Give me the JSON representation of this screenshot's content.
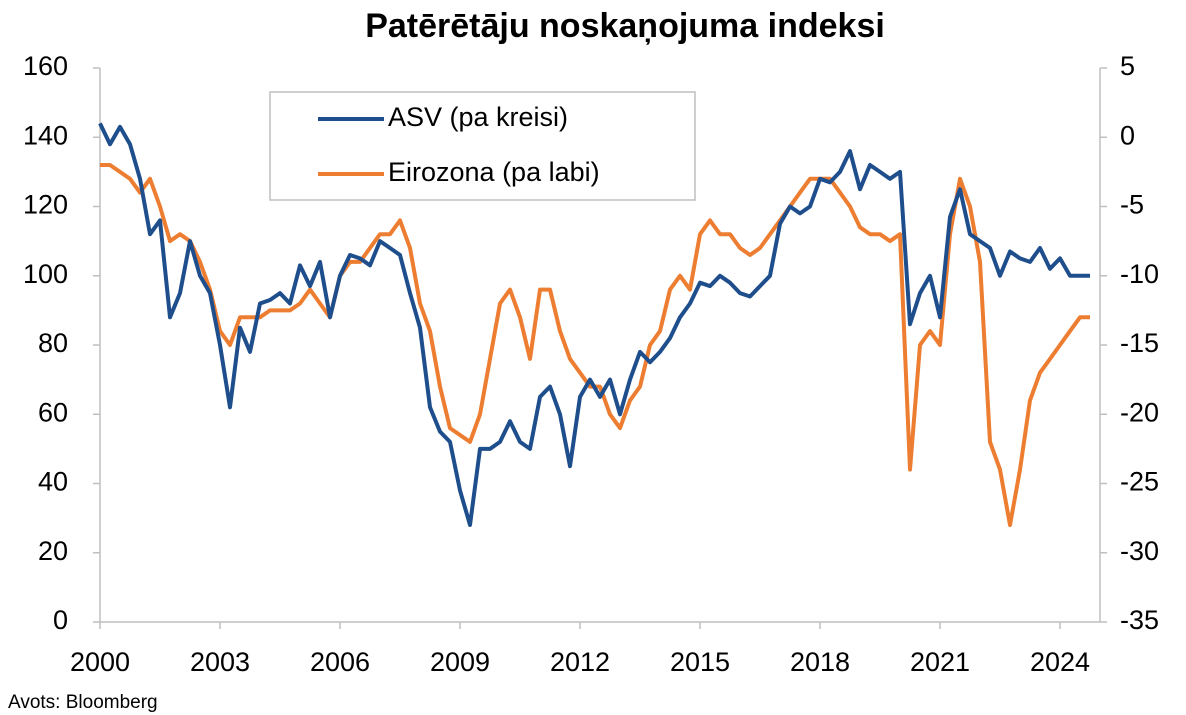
{
  "chart_data": {
    "type": "line",
    "title": "Patērētāju noskaņojuma indeksi",
    "source": "Avots: Bloomberg",
    "x": [
      2000,
      2000.25,
      2000.5,
      2000.75,
      2001,
      2001.25,
      2001.5,
      2001.75,
      2002,
      2002.25,
      2002.5,
      2002.75,
      2003,
      2003.25,
      2003.5,
      2003.75,
      2004,
      2004.25,
      2004.5,
      2004.75,
      2005,
      2005.25,
      2005.5,
      2005.75,
      2006,
      2006.25,
      2006.5,
      2006.75,
      2007,
      2007.25,
      2007.5,
      2007.75,
      2008,
      2008.25,
      2008.5,
      2008.75,
      2009,
      2009.25,
      2009.5,
      2009.75,
      2010,
      2010.25,
      2010.5,
      2010.75,
      2011,
      2011.25,
      2011.5,
      2011.75,
      2012,
      2012.25,
      2012.5,
      2012.75,
      2013,
      2013.25,
      2013.5,
      2013.75,
      2014,
      2014.25,
      2014.5,
      2014.75,
      2015,
      2015.25,
      2015.5,
      2015.75,
      2016,
      2016.25,
      2016.5,
      2016.75,
      2017,
      2017.25,
      2017.5,
      2017.75,
      2018,
      2018.25,
      2018.5,
      2018.75,
      2019,
      2019.25,
      2019.5,
      2019.75,
      2020,
      2020.25,
      2020.5,
      2020.75,
      2021,
      2021.25,
      2021.5,
      2021.75,
      2022,
      2022.25,
      2022.5,
      2022.75,
      2023,
      2023.25,
      2023.5,
      2023.75,
      2024,
      2024.25,
      2024.5,
      2024.75
    ],
    "series": [
      {
        "name": "ASV (pa kreisi)",
        "color": "#1f4e8c",
        "axis": "y",
        "values": [
          144,
          138,
          143,
          138,
          128,
          112,
          116,
          88,
          95,
          110,
          100,
          95,
          80,
          62,
          85,
          78,
          92,
          93,
          95,
          92,
          103,
          97,
          104,
          88,
          100,
          106,
          105,
          103,
          110,
          108,
          106,
          95,
          85,
          62,
          55,
          52,
          38,
          28,
          50,
          50,
          52,
          58,
          52,
          50,
          65,
          68,
          60,
          45,
          65,
          70,
          65,
          70,
          60,
          70,
          78,
          75,
          78,
          82,
          88,
          92,
          98,
          97,
          100,
          98,
          95,
          94,
          97,
          100,
          115,
          120,
          118,
          120,
          128,
          127,
          130,
          136,
          125,
          132,
          130,
          128,
          130,
          86,
          95,
          100,
          88,
          117,
          125,
          112,
          110,
          108,
          100,
          107,
          105,
          104,
          108,
          102,
          105,
          100,
          100,
          100
        ]
      },
      {
        "name": "Eirozona (pa labi)",
        "color": "#ed7d31",
        "axis": "y2",
        "values": [
          -2,
          -2,
          -2.5,
          -3,
          -4,
          -3,
          -5,
          -7.5,
          -7,
          -7.5,
          -9,
          -11,
          -14,
          -15,
          -13,
          -13,
          -13,
          -12.5,
          -12.5,
          -12.5,
          -12,
          -11,
          -12,
          -13,
          -10,
          -9,
          -9,
          -8,
          -7,
          -7,
          -6,
          -8,
          -12,
          -14,
          -18,
          -21,
          -21.5,
          -22,
          -20,
          -16,
          -12,
          -11,
          -13,
          -16,
          -11,
          -11,
          -14,
          -16,
          -17,
          -18,
          -18,
          -20,
          -21,
          -19,
          -18,
          -15,
          -14,
          -11,
          -10,
          -11,
          -7,
          -6,
          -7,
          -7,
          -8,
          -8.5,
          -8,
          -7,
          -6,
          -5,
          -4,
          -3,
          -3,
          -3,
          -4,
          -5,
          -6.5,
          -7,
          -7,
          -7.5,
          -7,
          -24,
          -15,
          -14,
          -15,
          -7,
          -3,
          -5,
          -9,
          -22,
          -24,
          -28,
          -24,
          -19,
          -17,
          -16,
          -15,
          -14,
          -13,
          -13
        ]
      }
    ],
    "xlim": [
      2000,
      2025
    ],
    "xticks": [
      2000,
      2003,
      2006,
      2009,
      2012,
      2015,
      2018,
      2021,
      2024
    ],
    "ylim": [
      0,
      160
    ],
    "yticks": [
      0,
      20,
      40,
      60,
      80,
      100,
      120,
      140,
      160
    ],
    "y2lim": [
      -35,
      5
    ],
    "y2ticks": [
      -35,
      -30,
      -25,
      -20,
      -15,
      -10,
      -5,
      0,
      5
    ],
    "grid": false,
    "legend": "upper left"
  }
}
